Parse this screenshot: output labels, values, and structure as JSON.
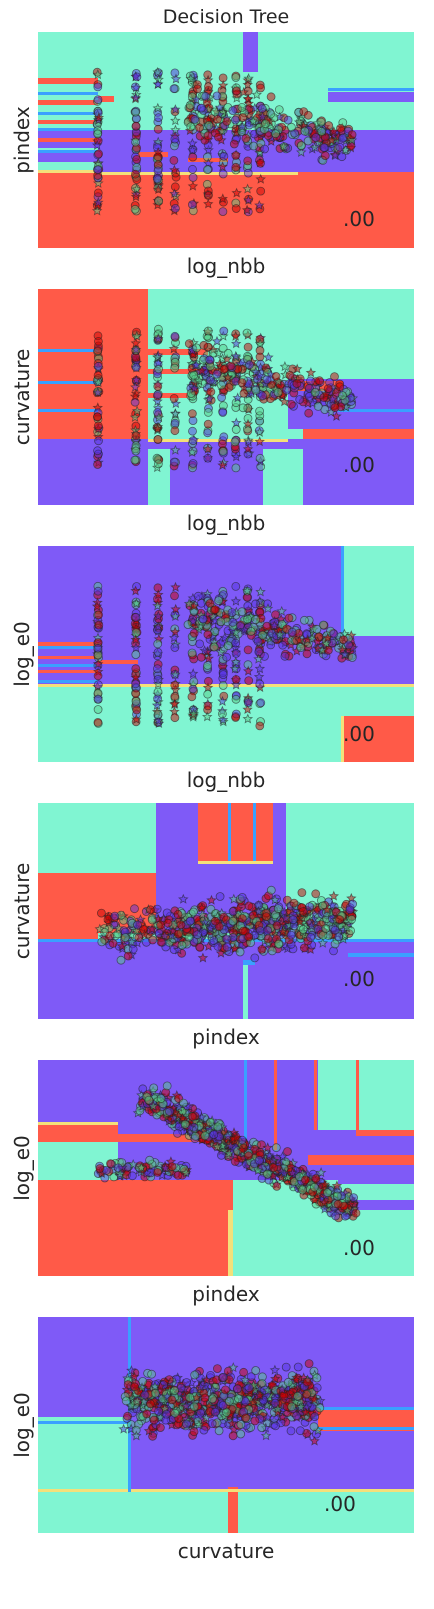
{
  "figure": {
    "title": "Decision Tree",
    "class_colors": [
      "#ff5a48",
      "#7f5af7",
      "#80f5d2"
    ],
    "marker_colors": [
      "#cc0000",
      "#5533dd",
      "#55cc88"
    ],
    "marker_shapes": [
      "circle",
      "star"
    ]
  },
  "chart_data": [
    {
      "type": "scatter",
      "xlabel": "log_nbb",
      "ylabel": "pindex",
      "score_label": ".00",
      "tick_labels_visible": false,
      "grid": false,
      "background": "decision-regions",
      "region_classes": [
        "red",
        "purple",
        "aquamarine"
      ],
      "point_pattern": "discrete-columns"
    },
    {
      "type": "scatter",
      "xlabel": "log_nbb",
      "ylabel": "curvature",
      "score_label": ".00",
      "tick_labels_visible": false,
      "grid": false,
      "background": "decision-regions",
      "region_classes": [
        "red",
        "purple",
        "aquamarine"
      ],
      "point_pattern": "discrete-columns"
    },
    {
      "type": "scatter",
      "xlabel": "log_nbb",
      "ylabel": "log_e0",
      "score_label": ".00",
      "tick_labels_visible": false,
      "grid": false,
      "background": "decision-regions",
      "region_classes": [
        "red",
        "purple",
        "aquamarine"
      ],
      "point_pattern": "discrete-columns"
    },
    {
      "type": "scatter",
      "xlabel": "pindex",
      "ylabel": "curvature",
      "score_label": ".00",
      "tick_labels_visible": false,
      "grid": false,
      "background": "decision-regions",
      "region_classes": [
        "red",
        "purple",
        "aquamarine"
      ],
      "point_pattern": "dense-cloud"
    },
    {
      "type": "scatter",
      "xlabel": "pindex",
      "ylabel": "log_e0",
      "score_label": ".00",
      "tick_labels_visible": false,
      "grid": false,
      "background": "decision-regions",
      "region_classes": [
        "red",
        "purple",
        "aquamarine"
      ],
      "point_pattern": "diagonal-cloud"
    },
    {
      "type": "scatter",
      "xlabel": "curvature",
      "ylabel": "log_e0",
      "score_label": ".00",
      "tick_labels_visible": false,
      "grid": false,
      "background": "decision-regions",
      "region_classes": [
        "red",
        "purple",
        "aquamarine"
      ],
      "point_pattern": "dense-cloud"
    }
  ]
}
